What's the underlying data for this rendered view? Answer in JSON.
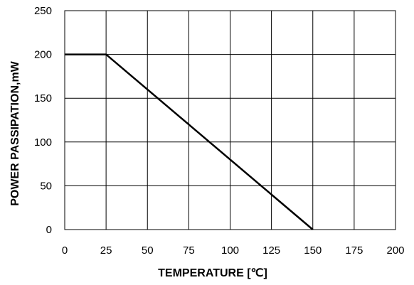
{
  "chart_data": {
    "type": "line",
    "title": "",
    "xlabel": "TEMPERATURE [℃]",
    "ylabel": "POWER PASSIPATION,mW",
    "xlim": [
      0,
      200
    ],
    "ylim": [
      0,
      250
    ],
    "x_ticks": [
      0,
      25,
      50,
      75,
      100,
      125,
      150,
      175,
      200
    ],
    "y_ticks": [
      0,
      50,
      100,
      150,
      200,
      250
    ],
    "grid": true,
    "series": [
      {
        "x": [
          0,
          25,
          150
        ],
        "y": [
          200,
          200,
          0
        ],
        "color": "#000000"
      }
    ]
  }
}
